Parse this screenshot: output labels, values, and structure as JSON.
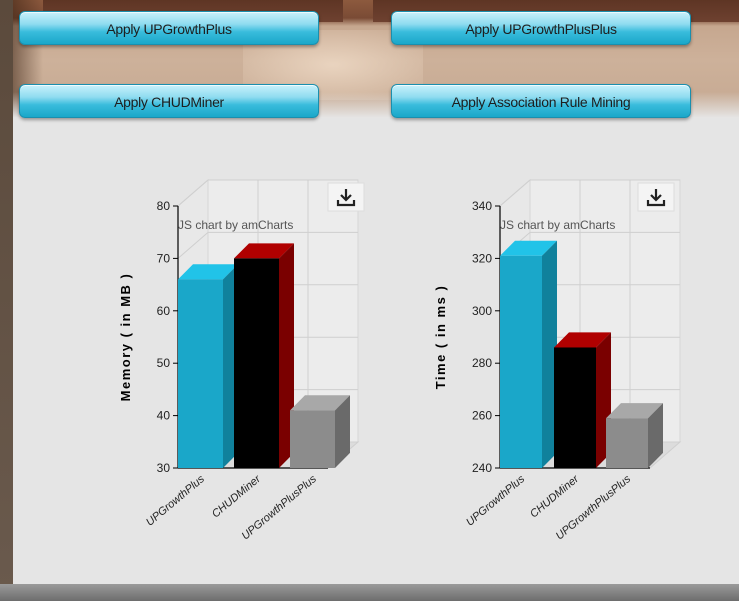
{
  "buttons": {
    "upgrowthplus": "Apply UPGrowthPlus",
    "upgrowthplusplus": "Apply UPGrowthPlusPlus",
    "chudminer": "Apply CHUDMiner",
    "association_rule": "Apply Association Rule Mining"
  },
  "chart_credit": "JS chart by amCharts",
  "icons": {
    "export": "download-icon"
  },
  "colors": {
    "series": [
      "#1aa7c9",
      "#000000",
      "#8c8c8c"
    ],
    "series_side": [
      "#10819c",
      "#7a0000",
      "#6a6a6a"
    ],
    "series_top": [
      "#21c3e8",
      "#b00000",
      "#a8a8a8"
    ]
  },
  "chart_data": [
    {
      "type": "bar",
      "categories": [
        "UPGrowthPlus",
        "CHUDMiner",
        "UPGrowthPlusPlus"
      ],
      "values": [
        66,
        70,
        41
      ],
      "ylabel": "Memory ( in MB )",
      "xlabel": "",
      "ylim": [
        30,
        80
      ],
      "yticks": [
        30,
        40,
        50,
        60,
        70,
        80
      ],
      "grid": true,
      "style": "3d"
    },
    {
      "type": "bar",
      "categories": [
        "UPGrowthPlus",
        "CHUDMiner",
        "UPGrowthPlusPlus"
      ],
      "values": [
        321,
        286,
        259
      ],
      "ylabel": "Time ( in ms )",
      "xlabel": "",
      "ylim": [
        240,
        340
      ],
      "yticks": [
        240,
        260,
        280,
        300,
        320,
        340
      ],
      "grid": true,
      "style": "3d"
    }
  ]
}
